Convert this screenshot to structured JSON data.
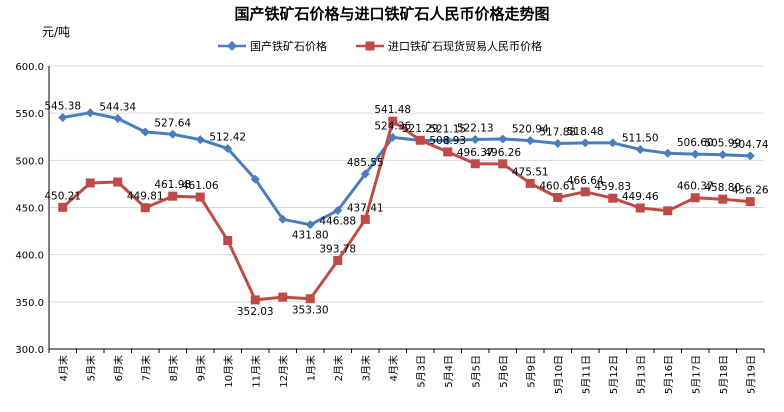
{
  "chart_data": {
    "type": "line",
    "title": "国产铁矿石价格与进口铁矿石人民币价格走势图",
    "unit_label": "元/吨",
    "ylim": [
      300,
      600
    ],
    "y_ticks": [
      "300.0",
      "350.0",
      "400.0",
      "450.0",
      "500.0",
      "550.0",
      "600.0"
    ],
    "grid": true,
    "legend_position": "top",
    "categories": [
      "4月末",
      "5月末",
      "6月末",
      "7月末",
      "8月末",
      "9月末",
      "10月末",
      "11月末",
      "12月末",
      "1月末",
      "2月末",
      "3月末",
      "4月末",
      "5月3日",
      "5月4日",
      "5月5日",
      "5月6日",
      "5月9日",
      "5月10日",
      "5月11日",
      "5月12日",
      "5月13日",
      "5月16日",
      "5月17日",
      "5月18日",
      "5月19日"
    ],
    "series": [
      {
        "name": "国产铁矿石价格",
        "color": "#4a7ebb",
        "marker": "diamond",
        "values": [
          545.38,
          550.5,
          544.34,
          530.0,
          527.64,
          522.0,
          512.42,
          480.0,
          437.5,
          431.8,
          446.88,
          485.55,
          524.36,
          521.0,
          521.15,
          522.13,
          522.61,
          520.94,
          517.88,
          518.48,
          518.5,
          511.5,
          507.5,
          506.6,
          505.99,
          504.74
        ],
        "labels": [
          "545.38",
          "",
          "544.34",
          "",
          "527.64",
          "",
          "512.42",
          "",
          "",
          "431.80",
          "446.88",
          "485.55",
          "524.36",
          "",
          "521.15",
          "522.13",
          "",
          "520.94",
          "517.88",
          "518.48",
          "",
          "511.50",
          "",
          "506.60",
          "505.99",
          "504.74"
        ]
      },
      {
        "name": "进口铁矿石现货贸易人民币价格",
        "color": "#be4b48",
        "marker": "square",
        "values": [
          450.21,
          476.0,
          477.0,
          449.81,
          461.98,
          461.06,
          415.0,
          352.03,
          355.0,
          353.3,
          393.78,
          437.41,
          541.48,
          521.29,
          508.93,
          496.37,
          496.26,
          475.51,
          460.61,
          466.64,
          459.83,
          449.46,
          446.5,
          460.37,
          458.8,
          456.26
        ],
        "labels": [
          "450.21",
          "",
          "",
          "449.81",
          "461.98",
          "461.06",
          "",
          "352.03",
          "",
          "353.30",
          "393.78",
          "437.41",
          "541.48",
          "521.29",
          "508.93",
          "496.37",
          "496.26",
          "475.51",
          "460.61",
          "466.64",
          "459.83",
          "449.46",
          "",
          "460.37",
          "458.80",
          "456.26"
        ]
      }
    ]
  }
}
